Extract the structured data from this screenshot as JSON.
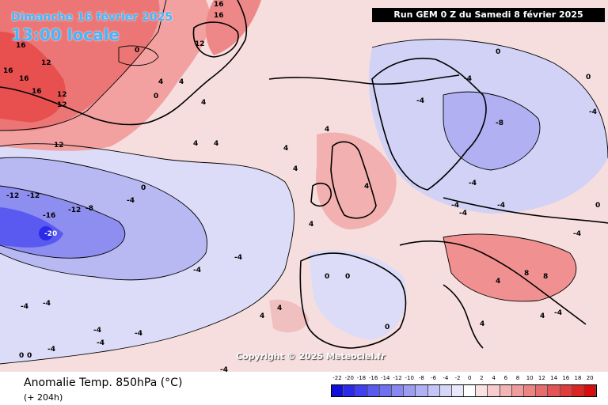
{
  "header": {
    "date_label": "Dimanche 16 février 2025",
    "time_label": "13:00 locale",
    "run_label": "Run GEM 0 Z du Samedi 8 février 2025"
  },
  "copyright": "Copyright © 2025 Meteociel.fr",
  "footer": {
    "variable": "Anomalie Temp. 850hPa (°C)",
    "lead_time": "(+ 204h)"
  },
  "legend": {
    "labels": [
      "-22",
      "-20",
      "-18",
      "-16",
      "-14",
      "-12",
      "-10",
      "-8",
      "-6",
      "-4",
      "-2",
      "0",
      "2",
      "4",
      "6",
      "8",
      "10",
      "12",
      "14",
      "16",
      "18",
      "20"
    ],
    "colors": [
      "#1010d8",
      "#2a2ae8",
      "#4040f0",
      "#5a5af0",
      "#7070f0",
      "#8888f0",
      "#9c9cf2",
      "#b0b0f4",
      "#c4c4f6",
      "#d6d6f8",
      "#e8e8fa",
      "#ffffff",
      "#fbe2e2",
      "#f8cccc",
      "#f4b4b4",
      "#f09c9c",
      "#ec8484",
      "#e86c6c",
      "#e45454",
      "#e03c3c",
      "#dc2424",
      "#d80c0c"
    ]
  },
  "map": {
    "contour_labels": [
      "16",
      "16",
      "16",
      "16",
      "16",
      "16",
      "12",
      "12",
      "12",
      "12",
      "12",
      "12",
      "12",
      "-12",
      "-12",
      "-12",
      "-16",
      "-20",
      "-8",
      "-4",
      "-4",
      "-4",
      "-4",
      "-4",
      "-4",
      "-4",
      "-4",
      "-4",
      "-4",
      "4",
      "4",
      "4",
      "4",
      "4",
      "4",
      "4",
      "4",
      "4",
      "4",
      "4",
      "4",
      "0",
      "0",
      "0",
      "0",
      "0",
      "0",
      "0",
      "0",
      "-8",
      "-4",
      "-4",
      "-4",
      "8",
      "8",
      "4",
      "4",
      "4",
      "0",
      "0",
      "0",
      "-4",
      "-4",
      "-4",
      "-4",
      "-4",
      "-4"
    ]
  }
}
